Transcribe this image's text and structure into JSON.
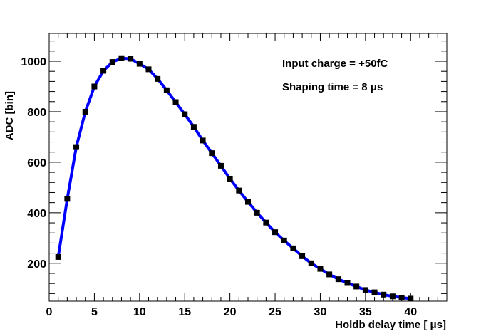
{
  "chart_data": {
    "type": "line",
    "title": "",
    "xlabel": "Holdb delay time [  μs]",
    "ylabel": "ADC [bin]",
    "xlim": [
      0,
      44
    ],
    "ylim": [
      50,
      1110
    ],
    "x_ticks": [
      0,
      5,
      10,
      15,
      20,
      25,
      30,
      35,
      40
    ],
    "y_ticks": [
      200,
      400,
      600,
      800,
      1000
    ],
    "grid": false,
    "legend": "none",
    "line_color": "#0000ff",
    "marker_color": "#000000",
    "annotations": [
      "Input charge  = +50fC",
      "Shaping time = 8  μs"
    ],
    "series": [
      {
        "x": [
          1,
          2,
          3,
          4,
          5,
          6,
          7,
          8,
          9,
          10,
          11,
          12,
          13,
          14,
          15,
          16,
          17,
          18,
          19,
          20,
          21,
          22,
          23,
          24,
          25,
          26,
          27,
          28,
          29,
          30,
          31,
          32,
          33,
          34,
          35,
          36,
          37,
          38,
          39,
          40
        ],
        "values": [
          225,
          455,
          660,
          800,
          900,
          962,
          997,
          1012,
          1010,
          990,
          968,
          930,
          885,
          838,
          790,
          740,
          686,
          636,
          586,
          535,
          488,
          443,
          400,
          361,
          323,
          290,
          259,
          228,
          200,
          178,
          156,
          137,
          122,
          108,
          94,
          85,
          76,
          69,
          64,
          60
        ]
      }
    ]
  }
}
